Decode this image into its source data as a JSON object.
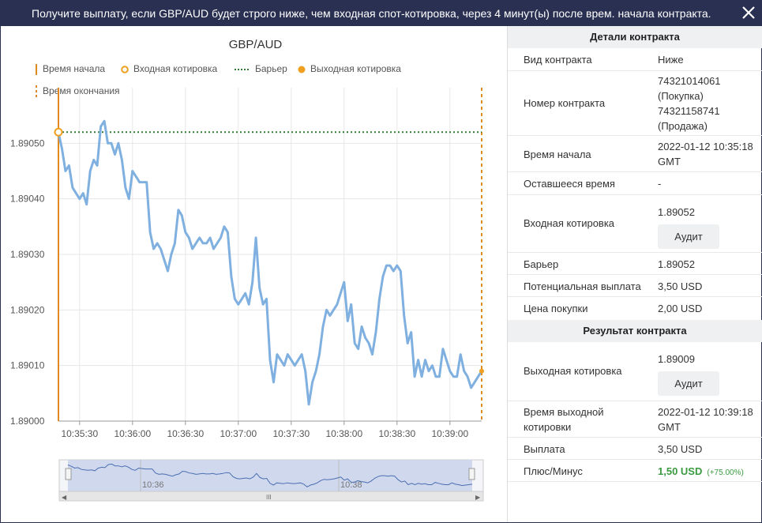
{
  "header": {
    "title": "Получите выплату, если GBP/AUD будет строго ниже, чем входная спот-котировка, через 4 минут(ы) после врем. начала контракта.",
    "close_icon": "close-icon"
  },
  "chart": {
    "title": "GBP/AUD",
    "legend": {
      "start_time": "Время начала",
      "entry_quote": "Входная котировка",
      "barrier": "Барьер",
      "exit_quote": "Выходная котировка",
      "end_time": "Время окончания"
    },
    "navigator": {
      "labels": [
        "10:36",
        "10:38"
      ],
      "scroll_handle": "III"
    }
  },
  "chart_data": {
    "type": "line",
    "title": "GBP/AUD",
    "xlabel": "",
    "ylabel": "",
    "x_ticks": [
      "10:35:30",
      "10:36:00",
      "10:36:30",
      "10:37:00",
      "10:37:30",
      "10:38:00",
      "10:38:30",
      "10:39:00"
    ],
    "y_ticks": [
      "1.89000",
      "1.89010",
      "1.89020",
      "1.89030",
      "1.89040",
      "1.89050"
    ],
    "ylim": [
      1.89,
      1.8906
    ],
    "xlim": [
      "10:35:18",
      "10:39:18"
    ],
    "barrier": 1.89052,
    "entry_quote": 1.89052,
    "exit_quote": 1.89009,
    "grid": true,
    "series": [
      {
        "color": "#7fb0e0",
        "x": [
          "10:35:18",
          "10:35:20",
          "10:35:22",
          "10:35:24",
          "10:35:26",
          "10:35:28",
          "10:35:30",
          "10:35:32",
          "10:35:34",
          "10:35:36",
          "10:35:38",
          "10:35:40",
          "10:35:42",
          "10:35:44",
          "10:35:46",
          "10:35:48",
          "10:35:50",
          "10:35:52",
          "10:35:54",
          "10:35:56",
          "10:35:58",
          "10:36:00",
          "10:36:02",
          "10:36:04",
          "10:36:06",
          "10:36:08",
          "10:36:10",
          "10:36:12",
          "10:36:14",
          "10:36:16",
          "10:36:18",
          "10:36:20",
          "10:36:22",
          "10:36:24",
          "10:36:26",
          "10:36:28",
          "10:36:30",
          "10:36:32",
          "10:36:34",
          "10:36:36",
          "10:36:38",
          "10:36:40",
          "10:36:42",
          "10:36:44",
          "10:36:46",
          "10:36:48",
          "10:36:50",
          "10:36:52",
          "10:36:54",
          "10:36:56",
          "10:36:58",
          "10:37:00",
          "10:37:02",
          "10:37:04",
          "10:37:06",
          "10:37:08",
          "10:37:10",
          "10:37:12",
          "10:37:14",
          "10:37:16",
          "10:37:18",
          "10:37:20",
          "10:37:22",
          "10:37:24",
          "10:37:26",
          "10:37:28",
          "10:37:30",
          "10:37:32",
          "10:37:34",
          "10:37:36",
          "10:37:38",
          "10:37:40",
          "10:37:42",
          "10:37:44",
          "10:37:46",
          "10:37:48",
          "10:37:50",
          "10:37:52",
          "10:37:54",
          "10:37:56",
          "10:37:58",
          "10:38:00",
          "10:38:02",
          "10:38:04",
          "10:38:06",
          "10:38:08",
          "10:38:10",
          "10:38:12",
          "10:38:14",
          "10:38:16",
          "10:38:18",
          "10:38:20",
          "10:38:22",
          "10:38:24",
          "10:38:26",
          "10:38:28",
          "10:38:30",
          "10:38:32",
          "10:38:34",
          "10:38:36",
          "10:38:38",
          "10:38:40",
          "10:38:42",
          "10:38:44",
          "10:38:46",
          "10:38:48",
          "10:38:50",
          "10:38:52",
          "10:38:54",
          "10:38:56",
          "10:38:58",
          "10:39:00",
          "10:39:02",
          "10:39:04",
          "10:39:06",
          "10:39:08",
          "10:39:10",
          "10:39:12",
          "10:39:14",
          "10:39:16",
          "10:39:18"
        ],
        "values": [
          1.89052,
          1.89049,
          1.89045,
          1.89046,
          1.89042,
          1.89041,
          1.8904,
          1.89041,
          1.89039,
          1.89045,
          1.89047,
          1.89046,
          1.89053,
          1.89054,
          1.8905,
          1.8905,
          1.89048,
          1.8905,
          1.89047,
          1.89042,
          1.8904,
          1.89045,
          1.89044,
          1.89043,
          1.89043,
          1.89043,
          1.89034,
          1.89031,
          1.89032,
          1.89031,
          1.89029,
          1.89027,
          1.8903,
          1.89032,
          1.89038,
          1.89037,
          1.89034,
          1.89033,
          1.89031,
          1.89032,
          1.89033,
          1.89032,
          1.89032,
          1.89033,
          1.89031,
          1.89032,
          1.89033,
          1.89035,
          1.89034,
          1.89026,
          1.89022,
          1.89021,
          1.89022,
          1.89023,
          1.89021,
          1.89025,
          1.89033,
          1.89024,
          1.89021,
          1.89022,
          1.89011,
          1.89007,
          1.89012,
          1.89011,
          1.8901,
          1.89012,
          1.89011,
          1.8901,
          1.89011,
          1.89012,
          1.89009,
          1.89003,
          1.89007,
          1.89009,
          1.89012,
          1.89017,
          1.8902,
          1.89019,
          1.8902,
          1.89021,
          1.89023,
          1.89025,
          1.89018,
          1.89021,
          1.89014,
          1.89013,
          1.89017,
          1.89015,
          1.89014,
          1.89012,
          1.89016,
          1.89022,
          1.89026,
          1.89028,
          1.89028,
          1.89027,
          1.89028,
          1.89027,
          1.89019,
          1.89014,
          1.89016,
          1.89008,
          1.89011,
          1.89008,
          1.89011,
          1.89009,
          1.8901,
          1.89008,
          1.89008,
          1.89013,
          1.89011,
          1.89009,
          1.89008,
          1.89008,
          1.89012,
          1.89009,
          1.89008,
          1.89006,
          1.89007,
          1.89008,
          1.89009
        ]
      }
    ]
  },
  "details": {
    "heading": "Детали контракта",
    "contract_type_label": "Вид контракта",
    "contract_type_value": "Ниже",
    "contract_id_label": "Номер контракта",
    "contract_id_lines": [
      "74321014061",
      "(Покупка)",
      "74321158741",
      "(Продажа)"
    ],
    "start_time_label": "Время начала",
    "start_time_lines": [
      "2022-01-12 10:35:18",
      "GMT"
    ],
    "remaining_label": "Оставшееся время",
    "remaining_value": "-",
    "entry_label": "Входная котировка",
    "entry_value": "1.89052",
    "audit_label": "Аудит",
    "barrier_label": "Барьер",
    "barrier_value": "1.89052",
    "payout_label": "Потенциальная выплата",
    "payout_value": "3,50 USD",
    "price_label": "Цена покупки",
    "price_value": "2,00 USD"
  },
  "result": {
    "heading": "Результат контракта",
    "exit_label": "Выходная котировка",
    "exit_value": "1.89009",
    "audit_label": "Аудит",
    "exit_time_label_lines": [
      "Время выходной",
      "котировки"
    ],
    "exit_time_lines": [
      "2022-01-12 10:39:18",
      "GMT"
    ],
    "payout_label": "Выплата",
    "payout_value": "3,50 USD",
    "pl_label": "Плюс/Минус",
    "pl_value": "1,50 USD",
    "pl_pct": "(+75.00%)"
  },
  "colors": {
    "header_bg": "#2a3052",
    "series": "#7fb0e0",
    "start_marker": "#e08a20",
    "barrier": "#2e7d32",
    "profit": "#3a9a40"
  }
}
